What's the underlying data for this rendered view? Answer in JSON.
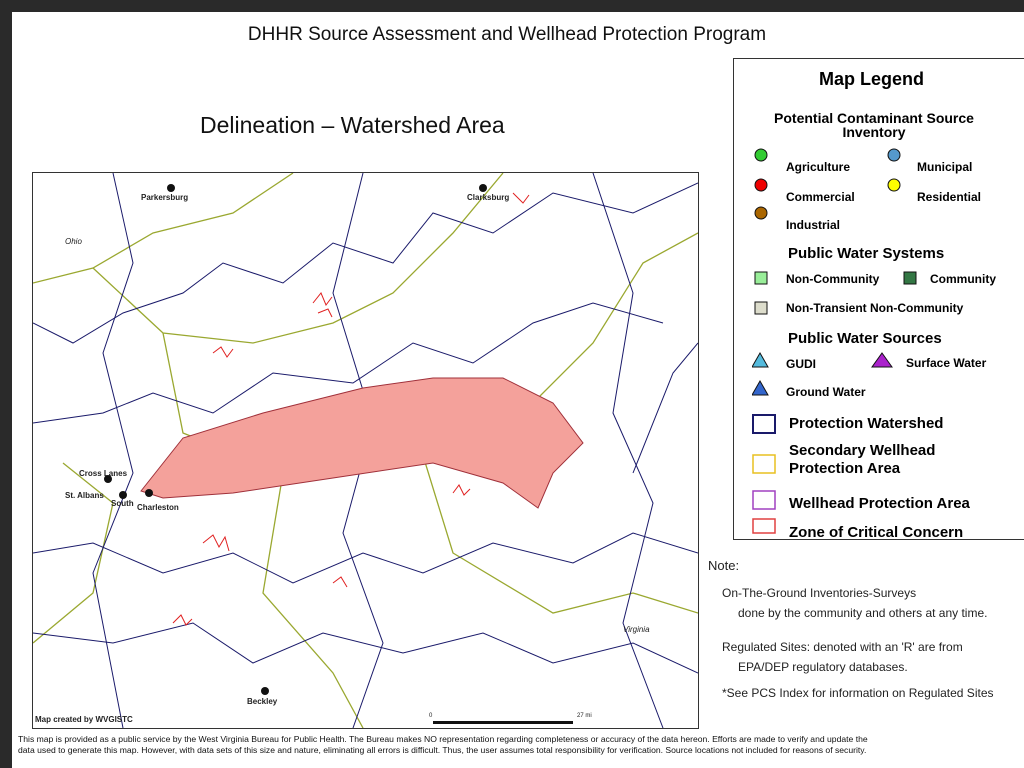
{
  "header": {
    "title": "DHHR Source Assessment and Wellhead Protection Program",
    "subtitle": "Delineation – Watershed Area"
  },
  "map": {
    "places": [
      "Parkersburg",
      "Clarksburg",
      "Ohio",
      "Cross Lanes",
      "St. Albans",
      "South",
      "Charleston",
      "Beckley",
      "Virginia"
    ],
    "credit": "Map created by WVGISTC",
    "scale": [
      "0",
      "27 mi"
    ]
  },
  "legend": {
    "title": "Map Legend",
    "sections": [
      {
        "heading": "Potential Contaminant Source Inventory",
        "items": [
          "Agriculture",
          "Municipal",
          "Commercial",
          "Residential",
          "Industrial"
        ]
      },
      {
        "heading": "Public Water Systems",
        "items": [
          "Non-Community",
          "Community",
          "Non-Transient Non-Community"
        ]
      },
      {
        "heading": "Public Water Sources",
        "items": [
          "GUDI",
          "Surface Water",
          "Ground Water"
        ]
      }
    ],
    "areas": [
      "Protection Watershed",
      "Secondary Wellhead Protection Area",
      "Wellhead Protection Area",
      "Zone of Critical Concern"
    ]
  },
  "note": {
    "label": "Note:",
    "items": [
      [
        "On-The-Ground Inventories-Surveys",
        "done by the community and others at any time."
      ],
      [
        "Regulated Sites: denoted with an 'R' are from",
        "EPA/DEP regulatory databases."
      ],
      [
        "*See PCS Index for information on Regulated Sites"
      ]
    ]
  },
  "disclaimer": [
    "This map is provided as a public service by the West Virginia Bureau for Public Health. The Bureau makes NO representation regarding completeness or accuracy of the data hereon. Efforts are made to verify and update the",
    "data used to generate this map.  However, with data sets of this size and nature, eliminating all errors is difficult. Thus, the user assumes total responsibility for verification. Source locations not included for reasons of security."
  ]
}
